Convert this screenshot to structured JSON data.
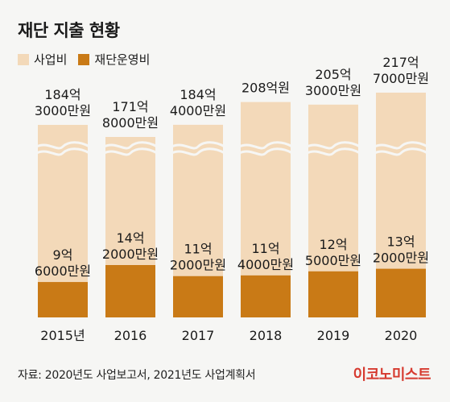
{
  "title": "재단 지출 현황",
  "legend": [
    {
      "label": "사업비",
      "color": "#f3d9b9"
    },
    {
      "label": "재단운영비",
      "color": "#c97a16"
    }
  ],
  "source": "자료: 2020년도 사업보고서, 2021년도 사업계획서",
  "brand": "이코노미스트",
  "chart_data": {
    "type": "bar",
    "stacked": true,
    "unit": "원",
    "categories": [
      "2015년",
      "2016",
      "2017",
      "2018",
      "2019",
      "2020"
    ],
    "axis_break": true,
    "series": [
      {
        "name": "재단운영비",
        "color": "#c97a16",
        "values": [
          960000000,
          1420000000,
          1120000000,
          1140000000,
          1250000000,
          1320000000
        ],
        "labels": [
          [
            "9억",
            "6000만원"
          ],
          [
            "14억",
            "2000만원"
          ],
          [
            "11억",
            "2000만원"
          ],
          [
            "11억",
            "4000만원"
          ],
          [
            "12억",
            "5000만원"
          ],
          [
            "13억",
            "2000만원"
          ]
        ]
      },
      {
        "name": "사업비",
        "color": "#f3d9b9",
        "values": [
          18430000000,
          17180000000,
          18440000000,
          20800000000,
          20530000000,
          21770000000
        ],
        "labels": [
          [
            "184억",
            "3000만원"
          ],
          [
            "171억",
            "8000만원"
          ],
          [
            "184억",
            "4000만원"
          ],
          [
            "208억원"
          ],
          [
            "205억",
            "3000만원"
          ],
          [
            "217억",
            "7000만원"
          ]
        ]
      }
    ]
  }
}
